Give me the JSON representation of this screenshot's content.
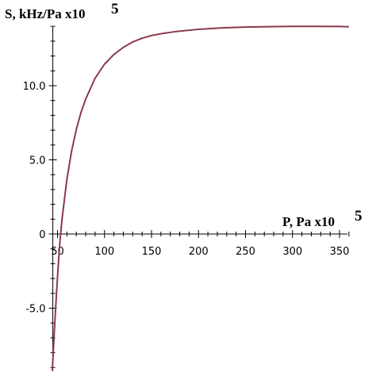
{
  "chart_data": {
    "type": "line",
    "ylabel": "S, kHz/Pa x10",
    "ylabel_exponent": "5",
    "xlabel": "P, Pa x10",
    "xlabel_exponent": "5",
    "x_ticks": [
      "50",
      "100",
      "150",
      "200",
      "250",
      "300",
      "350"
    ],
    "y_ticks": [
      "10.0",
      "5.0",
      "0",
      "-5.0"
    ],
    "xlim": [
      45,
      360
    ],
    "ylim": [
      -9.2,
      14.5
    ],
    "grid": false,
    "series": [
      {
        "color": "#8b3a4a",
        "points": [
          [
            44.5,
            -9.2
          ],
          [
            46,
            -7.3
          ],
          [
            48,
            -5.0
          ],
          [
            50,
            -2.9
          ],
          [
            52,
            -1.0
          ],
          [
            53,
            -0.2
          ],
          [
            55,
            1.1
          ],
          [
            60,
            3.7
          ],
          [
            65,
            5.6
          ],
          [
            70,
            7.05
          ],
          [
            75,
            8.2
          ],
          [
            80,
            9.1
          ],
          [
            90,
            10.5
          ],
          [
            100,
            11.45
          ],
          [
            110,
            12.1
          ],
          [
            120,
            12.58
          ],
          [
            130,
            12.95
          ],
          [
            140,
            13.2
          ],
          [
            150,
            13.38
          ],
          [
            160,
            13.5
          ],
          [
            175,
            13.64
          ],
          [
            200,
            13.8
          ],
          [
            225,
            13.9
          ],
          [
            250,
            13.95
          ],
          [
            275,
            13.98
          ],
          [
            300,
            14.0
          ],
          [
            325,
            14.0
          ],
          [
            350,
            13.99
          ],
          [
            360,
            13.97
          ]
        ]
      }
    ]
  }
}
